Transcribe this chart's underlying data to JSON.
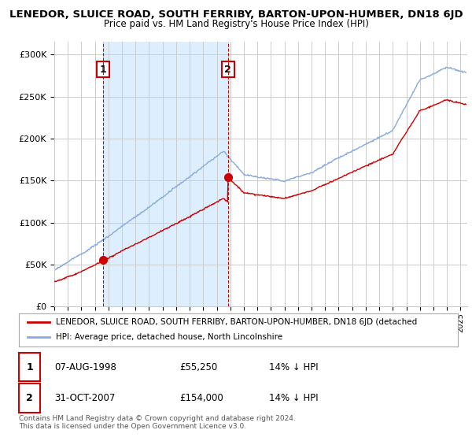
{
  "title": "LENEDOR, SLUICE ROAD, SOUTH FERRIBY, BARTON-UPON-HUMBER, DN18 6JD",
  "subtitle": "Price paid vs. HM Land Registry's House Price Index (HPI)",
  "yticks": [
    0,
    50000,
    100000,
    150000,
    200000,
    250000,
    300000
  ],
  "ytick_labels": [
    "£0",
    "£50K",
    "£100K",
    "£150K",
    "£200K",
    "£250K",
    "£300K"
  ],
  "xlim_start": 1995.0,
  "xlim_end": 2025.5,
  "ylim": [
    0,
    315000
  ],
  "background_color": "#ffffff",
  "plot_bg_color": "#ffffff",
  "grid_color": "#cccccc",
  "shade_color": "#ddeeff",
  "sale1_x": 1998.6,
  "sale1_y": 55250,
  "sale1_label": "1",
  "sale2_x": 2007.83,
  "sale2_y": 154000,
  "sale2_label": "2",
  "sale_color": "#cc0000",
  "hpi_color": "#88aadd",
  "vline_color": "#cc0000",
  "legend_sale_label": "LENEDOR, SLUICE ROAD, SOUTH FERRIBY, BARTON-UPON-HUMBER, DN18 6JD (detached",
  "legend_hpi_label": "HPI: Average price, detached house, North Lincolnshire",
  "table_row1": [
    "1",
    "07-AUG-1998",
    "£55,250",
    "14% ↓ HPI"
  ],
  "table_row2": [
    "2",
    "31-OCT-2007",
    "£154,000",
    "14% ↓ HPI"
  ],
  "footer": "Contains HM Land Registry data © Crown copyright and database right 2024.\nThis data is licensed under the Open Government Licence v3.0.",
  "xtick_years": [
    1995,
    1996,
    1997,
    1998,
    1999,
    2000,
    2001,
    2002,
    2003,
    2004,
    2005,
    2006,
    2007,
    2008,
    2009,
    2010,
    2011,
    2012,
    2013,
    2014,
    2015,
    2016,
    2017,
    2018,
    2019,
    2020,
    2021,
    2022,
    2023,
    2024,
    2025
  ]
}
